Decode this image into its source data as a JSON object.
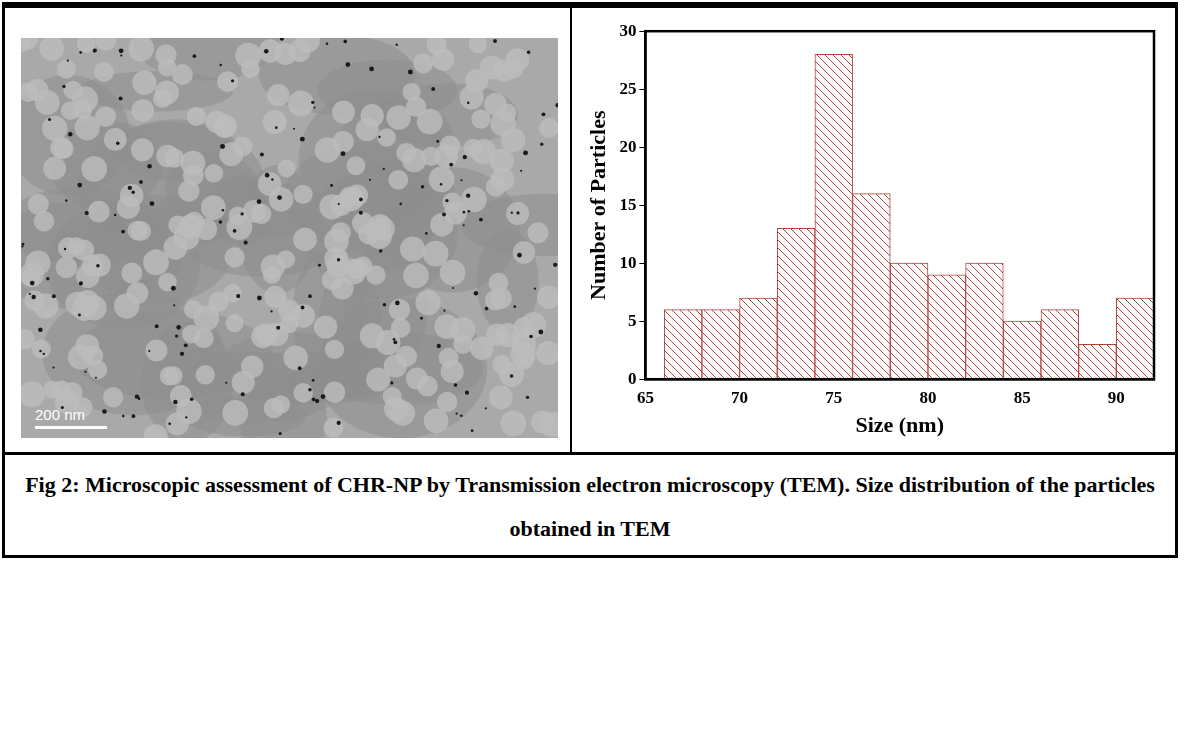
{
  "micrograph": {
    "scale_bar": "200 nm"
  },
  "chart_data": {
    "type": "histogram",
    "x_label": "Size (nm)",
    "y_label": "Number of Particles",
    "bins": [
      66,
      68,
      70,
      72,
      74,
      76,
      78,
      80,
      82,
      84,
      86,
      88,
      90,
      92
    ],
    "values": [
      6,
      6,
      7,
      13,
      28,
      16,
      10,
      9,
      10,
      5,
      6,
      3,
      7
    ],
    "color": "#b5443f",
    "xlim": [
      65,
      92
    ],
    "xticks": [
      65,
      70,
      75,
      80,
      85,
      90
    ],
    "ylim": [
      0,
      30
    ],
    "yticks": [
      0,
      5,
      10,
      15,
      20,
      25,
      30
    ],
    "grid": false
  },
  "caption": "Fig 2: Microscopic assessment of CHR-NP by Transmission electron microscopy (TEM). Size distribution of the particles obtained in TEM"
}
